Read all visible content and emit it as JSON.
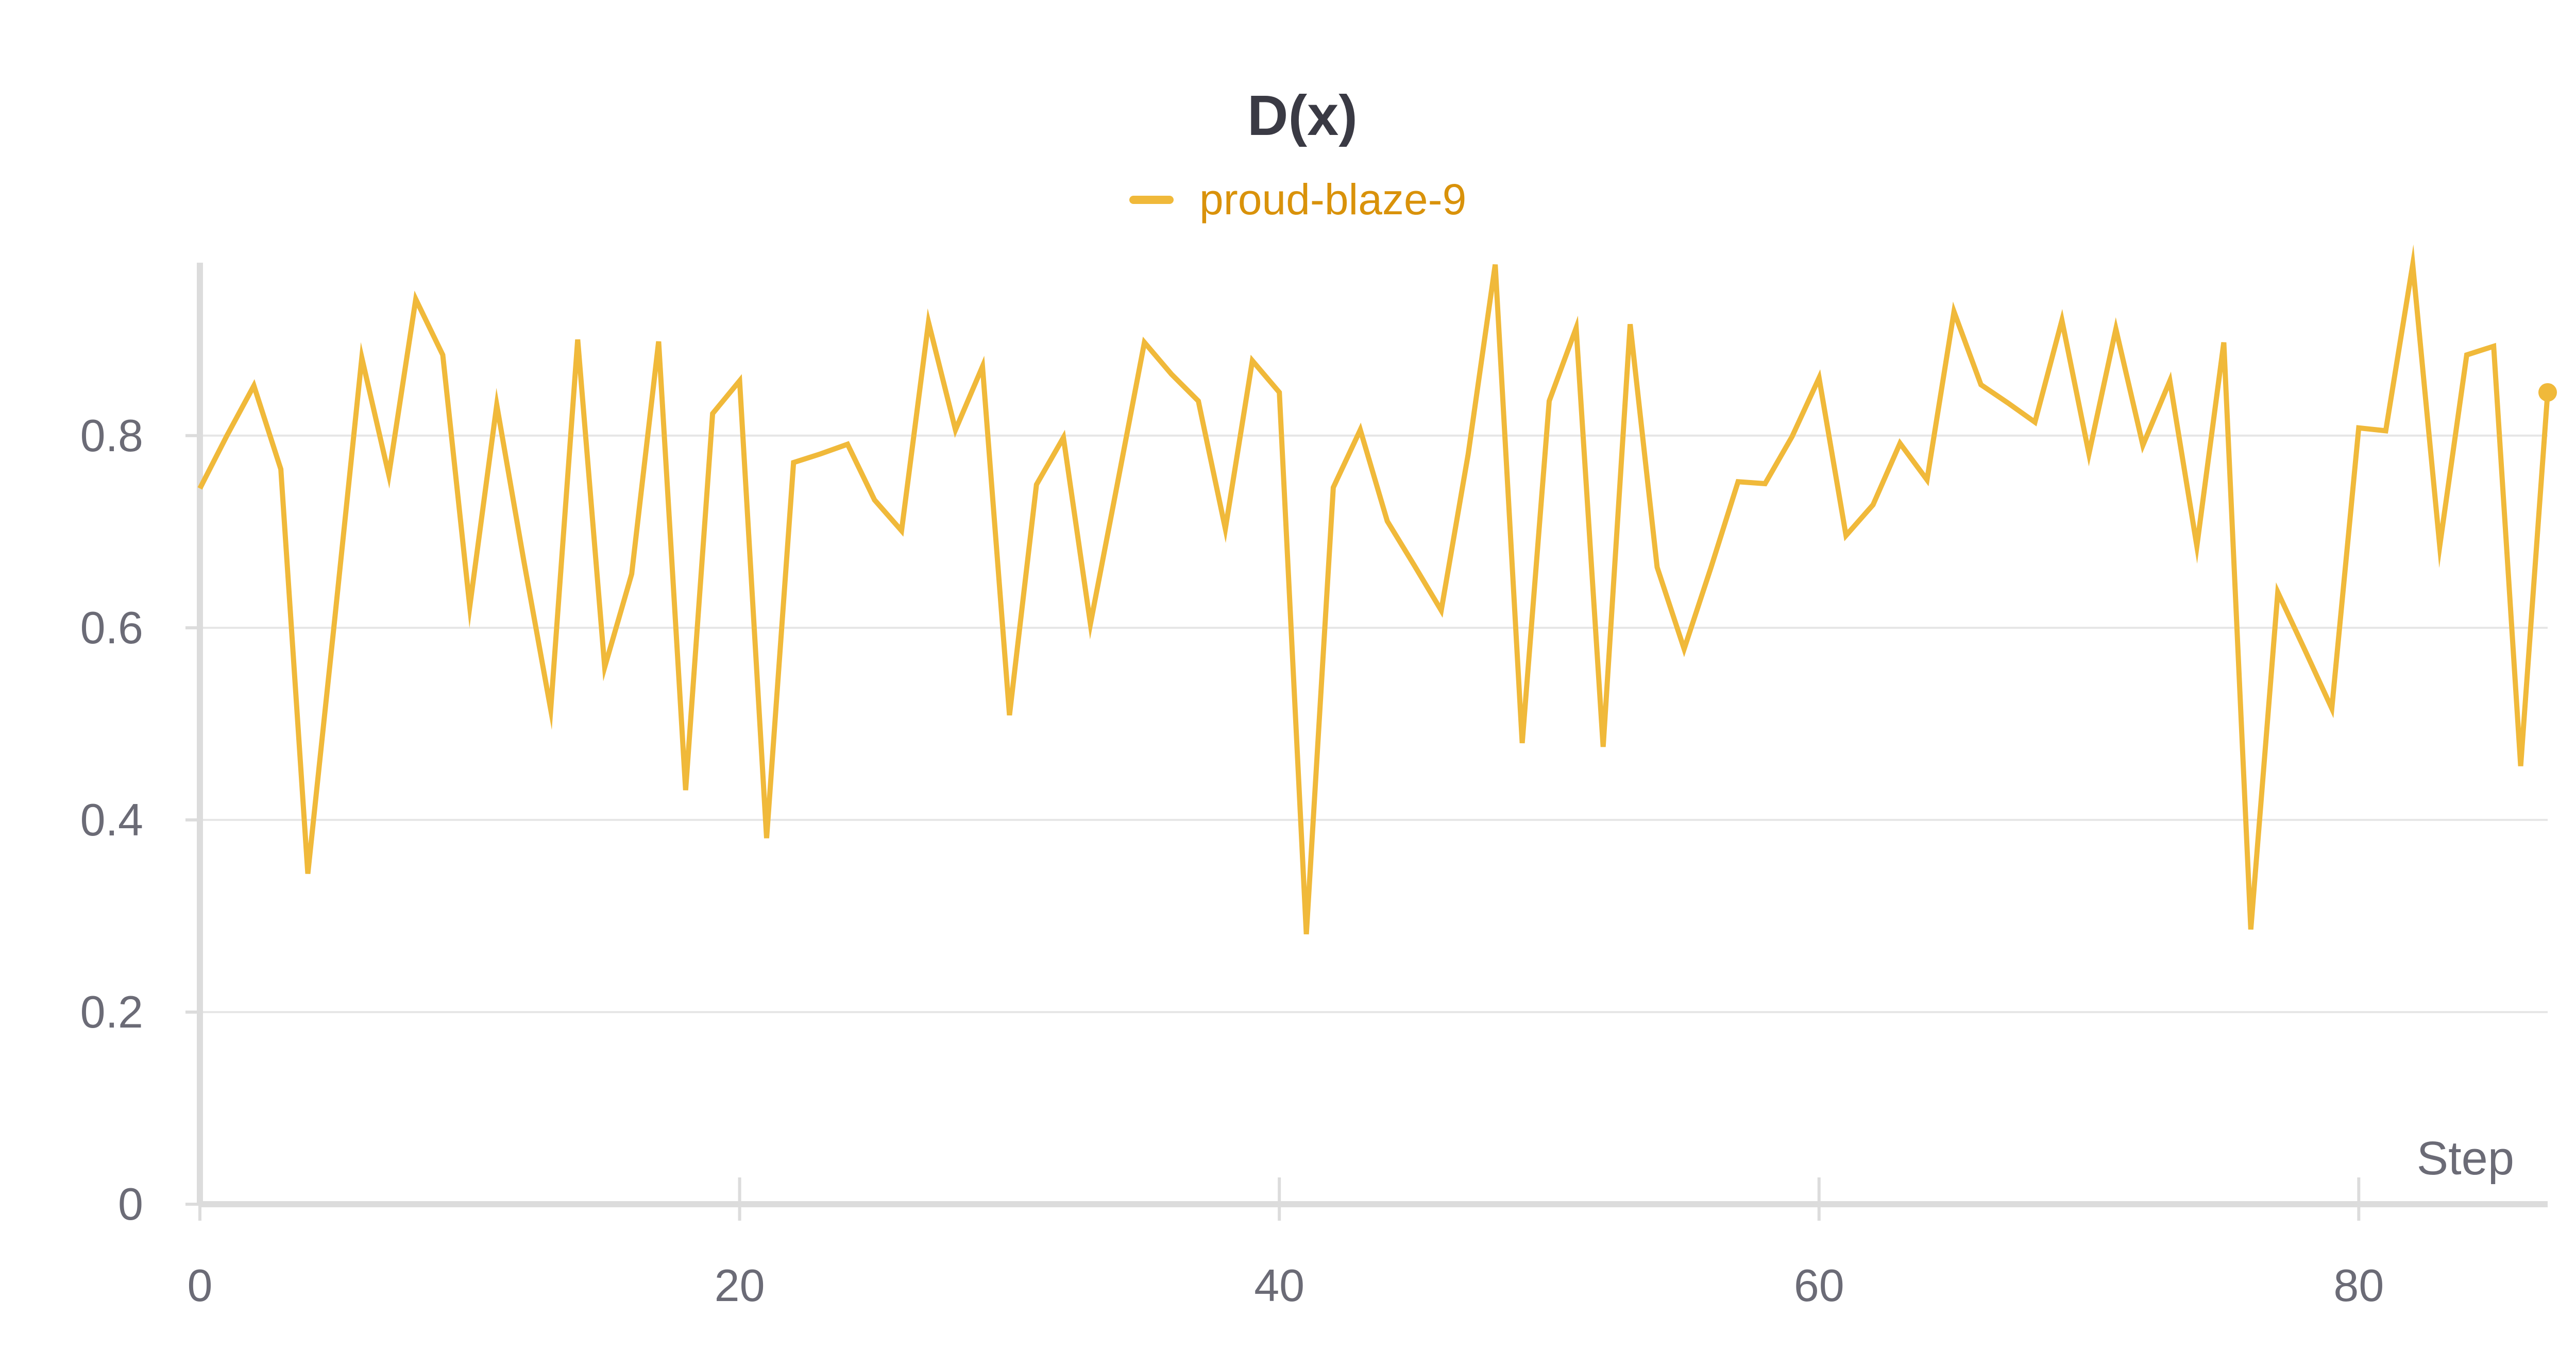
{
  "chart_data": {
    "type": "line",
    "title": "D(x)",
    "xlabel": "Step",
    "ylabel": "",
    "xlim": [
      0,
      87
    ],
    "ylim": [
      0,
      0.98
    ],
    "xticks": [
      0,
      20,
      40,
      60,
      80
    ],
    "yticks": [
      0,
      0.2,
      0.4,
      0.6,
      0.8
    ],
    "xtick_labels": [
      "0",
      "20",
      "40",
      "60",
      "80"
    ],
    "ytick_labels": [
      "0",
      "0.2",
      "0.4",
      "0.6",
      "0.8"
    ],
    "grid": true,
    "legend_position": "top-center",
    "colors": {
      "series": "#f0b93a",
      "legend_text": "#d9920a",
      "grid": "#e6e6e6",
      "axis": "#dcdcdc",
      "text": "#6b6b76",
      "title": "#3a3a44"
    },
    "series": [
      {
        "name": "proud-blaze-9",
        "x": [
          0,
          1,
          2,
          3,
          4,
          5,
          6,
          7,
          8,
          9,
          10,
          11,
          12,
          13,
          14,
          15,
          16,
          17,
          18,
          19,
          20,
          21,
          22,
          23,
          24,
          25,
          26,
          27,
          28,
          29,
          30,
          31,
          32,
          33,
          34,
          35,
          36,
          37,
          38,
          39,
          40,
          41,
          42,
          43,
          44,
          45,
          46,
          47,
          48,
          49,
          50,
          51,
          52,
          53,
          54,
          55,
          56,
          57,
          58,
          59,
          60,
          61,
          62,
          63,
          64,
          65,
          66,
          67,
          68,
          69,
          70,
          71,
          72,
          73,
          74,
          75,
          76,
          77,
          78,
          79,
          80,
          81,
          82,
          83,
          84,
          85,
          86,
          87
        ],
        "values": [
          0.745,
          0.8,
          0.852,
          0.765,
          0.344,
          0.61,
          0.881,
          0.759,
          0.942,
          0.884,
          0.622,
          0.832,
          0.67,
          0.515,
          0.9,
          0.559,
          0.656,
          0.898,
          0.431,
          0.823,
          0.857,
          0.381,
          0.772,
          0.781,
          0.791,
          0.733,
          0.701,
          0.918,
          0.806,
          0.872,
          0.509,
          0.749,
          0.798,
          0.604,
          0.75,
          0.897,
          0.864,
          0.836,
          0.703,
          0.878,
          0.845,
          0.281,
          0.746,
          0.806,
          0.711,
          0.665,
          0.618,
          0.781,
          0.978,
          0.48,
          0.836,
          0.912,
          0.476,
          0.916,
          0.663,
          0.578,
          0.663,
          0.752,
          0.75,
          0.799,
          0.86,
          0.696,
          0.728,
          0.792,
          0.754,
          0.929,
          0.853,
          0.834,
          0.814,
          0.92,
          0.781,
          0.911,
          0.79,
          0.857,
          0.685,
          0.897,
          0.286,
          0.637,
          0.577,
          0.516,
          0.808,
          0.805,
          0.978,
          0.685,
          0.884,
          0.893,
          0.456,
          0.845
        ]
      }
    ]
  }
}
